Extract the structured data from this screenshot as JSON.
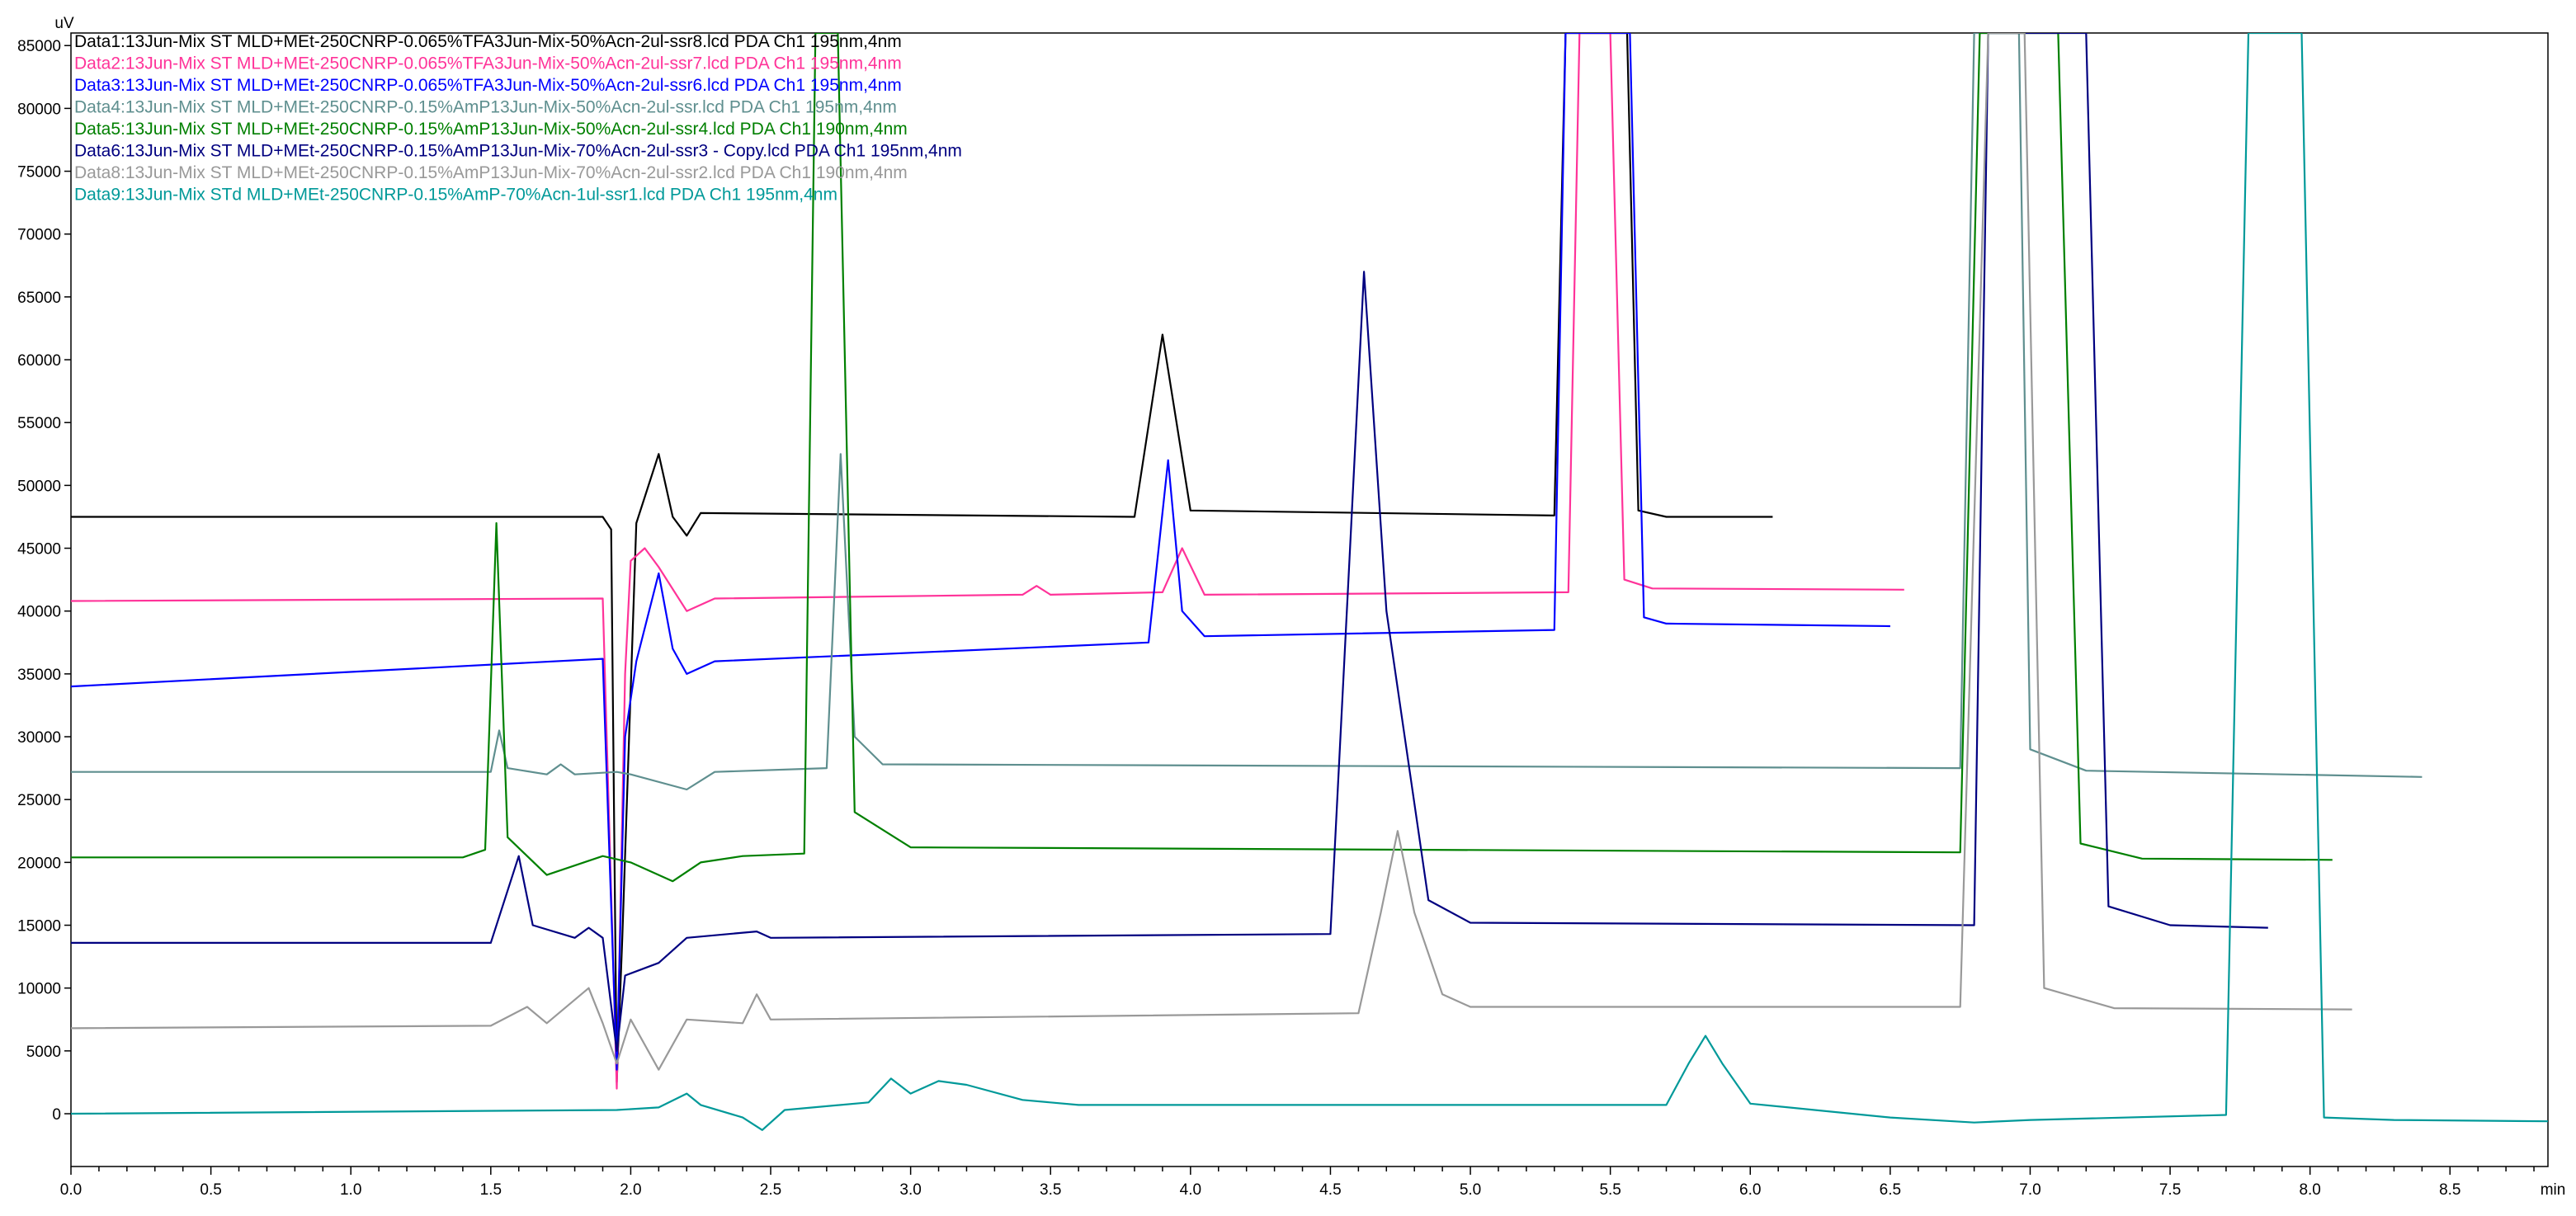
{
  "chart_data": {
    "type": "line",
    "ylabel": "uV",
    "xlabel": "min",
    "xlim": [
      0,
      8.85
    ],
    "ylim": [
      -4200,
      86000
    ],
    "x_ticks": [
      0.0,
      0.1,
      0.2,
      0.3,
      0.4,
      0.5,
      0.6,
      0.7,
      0.8,
      0.9,
      1.0,
      1.1,
      1.2,
      1.3,
      1.4,
      1.5,
      1.6,
      1.7,
      1.8,
      1.9,
      2.0,
      2.1,
      2.2,
      2.3,
      2.4,
      2.5,
      2.6,
      2.7,
      2.8,
      2.9,
      3.0,
      3.1,
      3.2,
      3.3,
      3.4,
      3.5,
      3.6,
      3.7,
      3.8,
      3.9,
      4.0,
      4.1,
      4.2,
      4.3,
      4.4,
      4.5,
      4.6,
      4.7,
      4.8,
      4.9,
      5.0,
      5.1,
      5.2,
      5.3,
      5.4,
      5.5,
      5.6,
      5.7,
      5.8,
      5.9,
      6.0,
      6.1,
      6.2,
      6.3,
      6.4,
      6.5,
      6.6,
      6.7,
      6.8,
      6.9,
      7.0,
      7.1,
      7.2,
      7.3,
      7.4,
      7.5,
      7.6,
      7.7,
      7.8,
      7.9,
      8.0,
      8.1,
      8.2,
      8.3,
      8.4,
      8.5,
      8.6,
      8.7,
      8.8
    ],
    "x_tick_labels": [
      "0.0",
      "0.5",
      "1.0",
      "1.5",
      "2.0",
      "2.5",
      "3.0",
      "3.5",
      "4.0",
      "4.5",
      "5.0",
      "5.5",
      "6.0",
      "6.5",
      "7.0",
      "7.5",
      "8.0",
      "8.5"
    ],
    "y_ticks": [
      0,
      5000,
      10000,
      15000,
      20000,
      25000,
      30000,
      35000,
      40000,
      45000,
      50000,
      55000,
      60000,
      65000,
      70000,
      75000,
      80000,
      85000
    ],
    "legend_position": "top-left",
    "series": [
      {
        "name": "Data1:13Jun-Mix ST MLD+MEt-250CNRP-0.065%TFA3Jun-Mix-50%Acn-2ul-ssr8.lcd PDA Ch1 195nm,4nm",
        "color": "#000000",
        "points": [
          [
            0,
            47500
          ],
          [
            1.9,
            47500
          ],
          [
            1.93,
            46500
          ],
          [
            1.95,
            2500
          ],
          [
            1.97,
            14000
          ],
          [
            2.02,
            47000
          ],
          [
            2.1,
            52500
          ],
          [
            2.15,
            47500
          ],
          [
            2.2,
            46000
          ],
          [
            2.25,
            47800
          ],
          [
            3.8,
            47500
          ],
          [
            3.9,
            62000
          ],
          [
            3.95,
            55000
          ],
          [
            4.0,
            48000
          ],
          [
            5.3,
            47600
          ],
          [
            5.34,
            86000
          ],
          [
            5.56,
            86000
          ],
          [
            5.6,
            48000
          ],
          [
            5.7,
            47500
          ],
          [
            6.08,
            47500
          ]
        ]
      },
      {
        "name": "Data2:13Jun-Mix ST MLD+MEt-250CNRP-0.065%TFA3Jun-Mix-50%Acn-2ul-ssr7.lcd PDA Ch1 195nm,4nm",
        "color": "#ff3399",
        "points": [
          [
            0,
            40800
          ],
          [
            1.9,
            41000
          ],
          [
            1.95,
            2000
          ],
          [
            1.98,
            35000
          ],
          [
            2.0,
            44000
          ],
          [
            2.05,
            45000
          ],
          [
            2.1,
            43500
          ],
          [
            2.2,
            40000
          ],
          [
            2.3,
            41000
          ],
          [
            3.4,
            41300
          ],
          [
            3.45,
            42000
          ],
          [
            3.5,
            41300
          ],
          [
            3.9,
            41500
          ],
          [
            3.97,
            45000
          ],
          [
            4.05,
            41300
          ],
          [
            5.35,
            41500
          ],
          [
            5.39,
            86000
          ],
          [
            5.5,
            86000
          ],
          [
            5.55,
            42500
          ],
          [
            5.65,
            41800
          ],
          [
            6.55,
            41700
          ]
        ]
      },
      {
        "name": "Data3:13Jun-Mix ST MLD+MEt-250CNRP-0.065%TFA3Jun-Mix-50%Acn-2ul-ssr6.lcd PDA Ch1 195nm,4nm",
        "color": "#0000ff",
        "points": [
          [
            0,
            34000
          ],
          [
            1.9,
            36200
          ],
          [
            1.95,
            3500
          ],
          [
            1.98,
            30000
          ],
          [
            2.02,
            36000
          ],
          [
            2.1,
            43000
          ],
          [
            2.15,
            37000
          ],
          [
            2.2,
            35000
          ],
          [
            2.3,
            36000
          ],
          [
            3.85,
            37500
          ],
          [
            3.92,
            52000
          ],
          [
            3.97,
            40000
          ],
          [
            4.05,
            38000
          ],
          [
            5.3,
            38500
          ],
          [
            5.34,
            86000
          ],
          [
            5.57,
            86000
          ],
          [
            5.62,
            39500
          ],
          [
            5.7,
            39000
          ],
          [
            6.5,
            38800
          ]
        ]
      },
      {
        "name": "Data4:13Jun-Mix ST MLD+MEt-250CNRP-0.15%AmP13Jun-Mix-50%Acn-2ul-ssr.lcd PDA Ch1 195nm,4nm",
        "color": "#5f8f8f",
        "points": [
          [
            0,
            27200
          ],
          [
            1.5,
            27200
          ],
          [
            1.53,
            30500
          ],
          [
            1.56,
            27500
          ],
          [
            1.7,
            27000
          ],
          [
            1.75,
            27800
          ],
          [
            1.8,
            27000
          ],
          [
            1.95,
            27200
          ],
          [
            2.0,
            27000
          ],
          [
            2.2,
            25800
          ],
          [
            2.3,
            27200
          ],
          [
            2.7,
            27500
          ],
          [
            2.75,
            52500
          ],
          [
            2.8,
            30000
          ],
          [
            2.9,
            27800
          ],
          [
            6.75,
            27500
          ],
          [
            6.8,
            86000
          ],
          [
            6.96,
            86000
          ],
          [
            7.0,
            29000
          ],
          [
            7.2,
            27300
          ],
          [
            8.4,
            26800
          ]
        ]
      },
      {
        "name": "Data5:13Jun-Mix ST MLD+MEt-250CNRP-0.15%AmP13Jun-Mix-50%Acn-2ul-ssr4.lcd PDA Ch1 190nm,4nm",
        "color": "#008000",
        "points": [
          [
            0,
            20400
          ],
          [
            1.4,
            20400
          ],
          [
            1.48,
            21000
          ],
          [
            1.52,
            47000
          ],
          [
            1.56,
            22000
          ],
          [
            1.7,
            19000
          ],
          [
            1.9,
            20500
          ],
          [
            2.0,
            20000
          ],
          [
            2.15,
            18500
          ],
          [
            2.25,
            20000
          ],
          [
            2.4,
            20500
          ],
          [
            2.62,
            20700
          ],
          [
            2.66,
            86000
          ],
          [
            2.74,
            86000
          ],
          [
            2.8,
            24000
          ],
          [
            3.0,
            21200
          ],
          [
            6.75,
            20800
          ],
          [
            6.82,
            86000
          ],
          [
            7.1,
            86000
          ],
          [
            7.18,
            21500
          ],
          [
            7.4,
            20300
          ],
          [
            8.08,
            20200
          ]
        ]
      },
      {
        "name": "Data6:13Jun-Mix ST MLD+MEt-250CNRP-0.15%AmP13Jun-Mix-70%Acn-2ul-ssr3 - Copy.lcd PDA Ch1 195nm,4nm",
        "color": "#000080",
        "points": [
          [
            0,
            13600
          ],
          [
            1.5,
            13600
          ],
          [
            1.6,
            20500
          ],
          [
            1.65,
            15000
          ],
          [
            1.8,
            14000
          ],
          [
            1.85,
            14800
          ],
          [
            1.9,
            14000
          ],
          [
            1.95,
            5000
          ],
          [
            1.98,
            11000
          ],
          [
            2.1,
            12000
          ],
          [
            2.2,
            14000
          ],
          [
            2.45,
            14500
          ],
          [
            2.5,
            14000
          ],
          [
            4.5,
            14300
          ],
          [
            4.57,
            45000
          ],
          [
            4.62,
            67000
          ],
          [
            4.7,
            40000
          ],
          [
            4.85,
            17000
          ],
          [
            5.0,
            15200
          ],
          [
            6.8,
            15000
          ],
          [
            6.85,
            86000
          ],
          [
            7.2,
            86000
          ],
          [
            7.28,
            16500
          ],
          [
            7.5,
            15000
          ],
          [
            7.85,
            14800
          ]
        ]
      },
      {
        "name": "Data8:13Jun-Mix ST MLD+MEt-250CNRP-0.15%AmP13Jun-Mix-70%Acn-2ul-ssr2.lcd PDA Ch1 190nm,4nm",
        "color": "#999999",
        "points": [
          [
            0,
            6800
          ],
          [
            1.5,
            7000
          ],
          [
            1.63,
            8500
          ],
          [
            1.7,
            7200
          ],
          [
            1.85,
            10000
          ],
          [
            1.9,
            7200
          ],
          [
            1.95,
            4000
          ],
          [
            2.0,
            7500
          ],
          [
            2.1,
            3500
          ],
          [
            2.2,
            7500
          ],
          [
            2.4,
            7200
          ],
          [
            2.45,
            9500
          ],
          [
            2.5,
            7500
          ],
          [
            4.6,
            8000
          ],
          [
            4.68,
            16000
          ],
          [
            4.74,
            22500
          ],
          [
            4.8,
            16000
          ],
          [
            4.9,
            9500
          ],
          [
            5.0,
            8500
          ],
          [
            6.75,
            8500
          ],
          [
            6.85,
            86000
          ],
          [
            6.98,
            86000
          ],
          [
            7.05,
            10000
          ],
          [
            7.3,
            8400
          ],
          [
            8.15,
            8300
          ]
        ]
      },
      {
        "name": "Data9:13Jun-Mix STd MLD+MEt-250CNRP-0.15%AmP-70%Acn-1ul-ssr1.lcd PDA Ch1 195nm,4nm",
        "color": "#009999",
        "points": [
          [
            0,
            0
          ],
          [
            1.95,
            300
          ],
          [
            2.1,
            500
          ],
          [
            2.2,
            1600
          ],
          [
            2.25,
            700
          ],
          [
            2.4,
            -300
          ],
          [
            2.47,
            -1300
          ],
          [
            2.55,
            300
          ],
          [
            2.85,
            900
          ],
          [
            2.93,
            2800
          ],
          [
            3.0,
            1600
          ],
          [
            3.1,
            2600
          ],
          [
            3.2,
            2300
          ],
          [
            3.4,
            1100
          ],
          [
            3.6,
            700
          ],
          [
            5.7,
            700
          ],
          [
            5.78,
            4000
          ],
          [
            5.84,
            6200
          ],
          [
            5.9,
            4000
          ],
          [
            6.0,
            800
          ],
          [
            6.5,
            -300
          ],
          [
            6.8,
            -700
          ],
          [
            7.0,
            -500
          ],
          [
            7.7,
            -100
          ],
          [
            7.78,
            86000
          ],
          [
            7.97,
            86000
          ],
          [
            8.05,
            -300
          ],
          [
            8.3,
            -500
          ],
          [
            8.85,
            -600
          ]
        ]
      }
    ]
  }
}
